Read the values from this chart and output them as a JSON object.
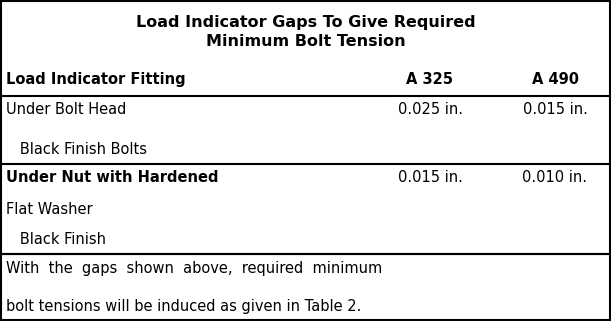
{
  "title": "Load Indicator Gaps To Give Required\nMinimum Bolt Tension",
  "header_col1": "Load Indicator Fitting",
  "header_col2": "A 325",
  "header_col3": "A 490",
  "row1_line1": "Under Bolt Head",
  "row1_line2": "   Black Finish Bolts",
  "row1_col2": "0.025 in.",
  "row1_col3": "0.015 in.",
  "row2_line1": "Under Nut with Hardened",
  "row2_line2": "Flat Washer",
  "row2_line3": "   Black Finish",
  "row2_col2": "0.015 in.",
  "row2_col3": "0.010 in.",
  "footer_line1": "With  the  gaps  shown  above,  required  minimum",
  "footer_line2": "bolt tensions will be induced as given in Table 2.",
  "bg_color": "#ffffff",
  "border_color": "#000000",
  "text_color": "#000000",
  "title_fontsize": 11.5,
  "header_fontsize": 10.5,
  "body_fontsize": 10.5,
  "footer_fontsize": 10.5,
  "fig_width": 6.11,
  "fig_height": 3.21,
  "dpi": 100
}
